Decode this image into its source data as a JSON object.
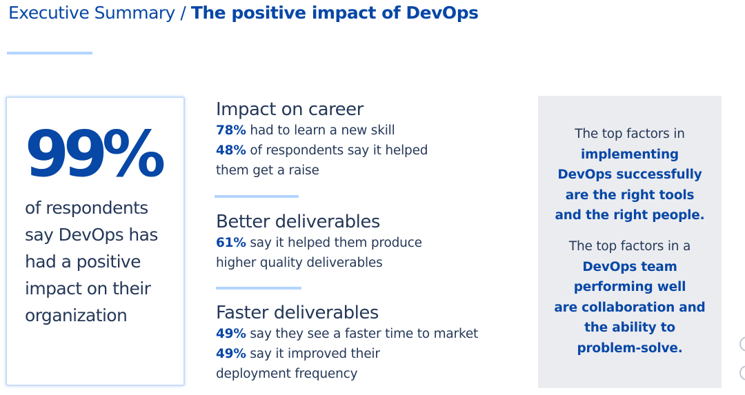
{
  "header": {
    "section": "Executive Summary",
    "separator": " / ",
    "title": "The positive impact of DevOps"
  },
  "stat": {
    "value": "99%",
    "lines": [
      "of respondents",
      "say DevOps has",
      "had a positive",
      "impact on their",
      "organization"
    ]
  },
  "impacts": [
    {
      "heading": "Impact on career",
      "lines": [
        {
          "pct": "78%",
          "text": " had to learn a new skill"
        },
        {
          "pct": "48%",
          "text": " of respondents say it helped"
        },
        {
          "pct": "",
          "text": "them get a raise"
        }
      ]
    },
    {
      "heading": "Better deliverables",
      "lines": [
        {
          "pct": "61%",
          "text": " say it helped them produce"
        },
        {
          "pct": "",
          "text": "higher quality deliverables"
        }
      ]
    },
    {
      "heading": "Faster deliverables",
      "lines": [
        {
          "pct": "49%",
          "text": " say they see a faster time to market"
        },
        {
          "pct": "49%",
          "text": " say it improved their"
        },
        {
          "pct": "",
          "text": "deployment frequency"
        }
      ]
    }
  ],
  "factors": {
    "implementing": {
      "intro": "The top factors in",
      "highlight": [
        "implementing",
        "DevOps successfully",
        "are the right tools",
        "and the right people."
      ]
    },
    "performing": {
      "intro": "The top factors in a",
      "highlight": [
        "DevOps team",
        "performing well",
        "are collaboration and",
        "the ability to",
        "problem-solve."
      ]
    }
  },
  "colors": {
    "brand_blue": "#0747a6",
    "text_dark": "#253858",
    "rule_light_blue": "#b3d4ff",
    "panel_gray": "#ebecf0"
  }
}
